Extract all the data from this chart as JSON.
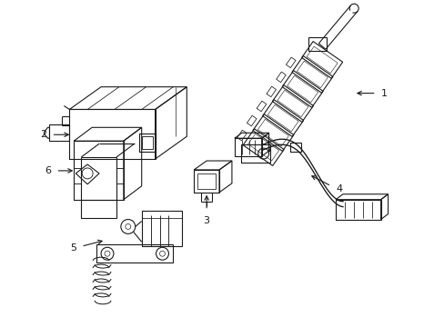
{
  "background_color": "#ffffff",
  "line_color": "#1a1a1a",
  "line_width": 0.8,
  "fig_width": 4.89,
  "fig_height": 3.6,
  "dpi": 100
}
